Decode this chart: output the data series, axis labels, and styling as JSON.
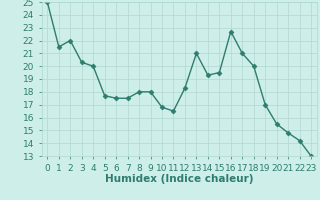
{
  "x": [
    0,
    1,
    2,
    3,
    4,
    5,
    6,
    7,
    8,
    9,
    10,
    11,
    12,
    13,
    14,
    15,
    16,
    17,
    18,
    19,
    20,
    21,
    22,
    23
  ],
  "y": [
    25.0,
    21.5,
    22.0,
    20.3,
    20.0,
    17.7,
    17.5,
    17.5,
    18.0,
    18.0,
    16.8,
    16.5,
    18.3,
    21.0,
    19.3,
    19.5,
    22.7,
    21.0,
    20.0,
    17.0,
    15.5,
    14.8,
    14.2,
    13.0
  ],
  "line_color": "#2e7d6e",
  "marker": "D",
  "marker_size": 2.5,
  "linewidth": 1.0,
  "bg_color": "#ceeee9",
  "grid_color": "#b0d8d2",
  "xlabel": "Humidex (Indice chaleur)",
  "xlabel_fontsize": 7.5,
  "xlabel_fontweight": "bold",
  "xlim": [
    -0.5,
    23.5
  ],
  "ylim": [
    13,
    25
  ],
  "yticks": [
    13,
    14,
    15,
    16,
    17,
    18,
    19,
    20,
    21,
    22,
    23,
    24,
    25
  ],
  "xtick_labels": [
    "0",
    "1",
    "2",
    "3",
    "4",
    "5",
    "6",
    "7",
    "8",
    "9",
    "10",
    "11",
    "12",
    "13",
    "14",
    "15",
    "16",
    "17",
    "18",
    "19",
    "20",
    "21",
    "22",
    "23"
  ],
  "tick_fontsize": 6.5,
  "tick_color": "#2e7d6e"
}
